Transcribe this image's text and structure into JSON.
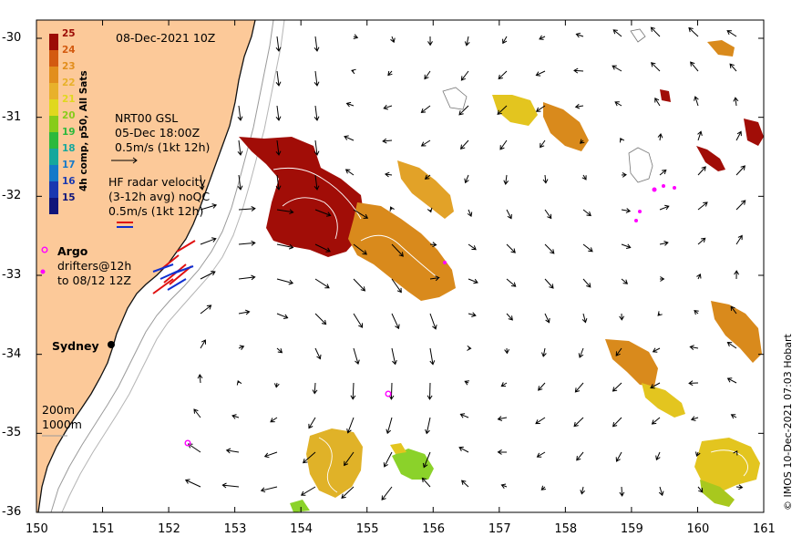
{
  "map": {
    "date_title": "08-Dec-2021 10Z",
    "gsl_lines": [
      "NRT00 GSL",
      "05-Dec 18:00Z",
      "0.5m/s (1kt 12h)"
    ],
    "hf_lines": [
      "HF radar velocity",
      "(3-12h avg) noQC",
      "0.5m/s (1kt 12h)"
    ],
    "argo_label": "Argo",
    "drifter_lines": [
      "drifters@12h",
      "to 08/12 12Z"
    ],
    "city_label": "Sydney",
    "depth_200": "200m",
    "depth_1000": "1000m",
    "copyright": "© IMOS 10-Dec-2021 07:03 Hobart",
    "colorbar": {
      "title": "4h comp, p50, All Sats",
      "values": [
        "25",
        "24",
        "23",
        "22",
        "21",
        "20",
        "19",
        "18",
        "17",
        "16",
        "15"
      ],
      "colors": [
        "#9c0b05",
        "#d35a10",
        "#e28e1c",
        "#e8b12a",
        "#e0d81e",
        "#87cc1a",
        "#2cb93c",
        "#16a79c",
        "#1479c9",
        "#1a38b0",
        "#10157a"
      ]
    },
    "x_ticks": [
      "150",
      "151",
      "152",
      "153",
      "154",
      "155",
      "156",
      "157",
      "158",
      "159",
      "160",
      "161"
    ],
    "y_ticks": [
      "-30",
      "-31",
      "-32",
      "-33",
      "-34",
      "-35",
      "-36"
    ],
    "colors": {
      "land": "#fcc999",
      "sst_hot": "#a10d07",
      "sst_orange": "#d98a1c",
      "sst_yellow": "#e3c51f",
      "sst_green": "#8bd22a",
      "argo": "#ff00ff",
      "drifter_red": "#e01010",
      "drifter_blue": "#1030d0"
    }
  }
}
